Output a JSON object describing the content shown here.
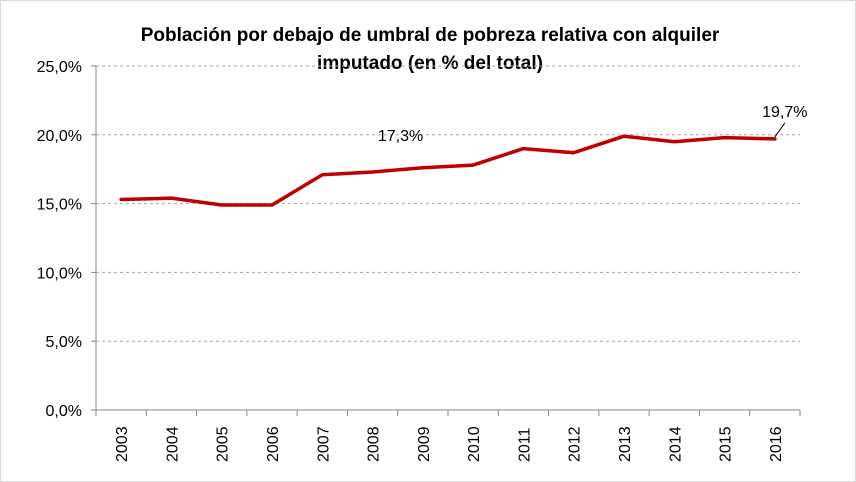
{
  "chart_data": {
    "type": "line",
    "title_line1": "Población por debajo de umbral de pobreza relativa con alquiler",
    "title_line2": "imputado (en % del total)",
    "categories": [
      "2003",
      "2004",
      "2005",
      "2006",
      "2007",
      "2008",
      "2009",
      "2010",
      "2011",
      "2012",
      "2013",
      "2014",
      "2015",
      "2016"
    ],
    "values": [
      15.3,
      15.4,
      14.9,
      14.9,
      17.1,
      17.3,
      17.6,
      17.8,
      19.0,
      18.7,
      19.9,
      19.5,
      19.8,
      19.7
    ],
    "y_ticks": [
      "0,0%",
      "5,0%",
      "10,0%",
      "15,0%",
      "20,0%",
      "25,0%"
    ],
    "ylim": [
      0,
      25
    ],
    "grid": "horizontal dashed",
    "line_color": "#C00000",
    "data_labels": [
      {
        "category": "2008",
        "text": "17,3%"
      },
      {
        "category": "2016",
        "text": "19,7%"
      }
    ]
  }
}
